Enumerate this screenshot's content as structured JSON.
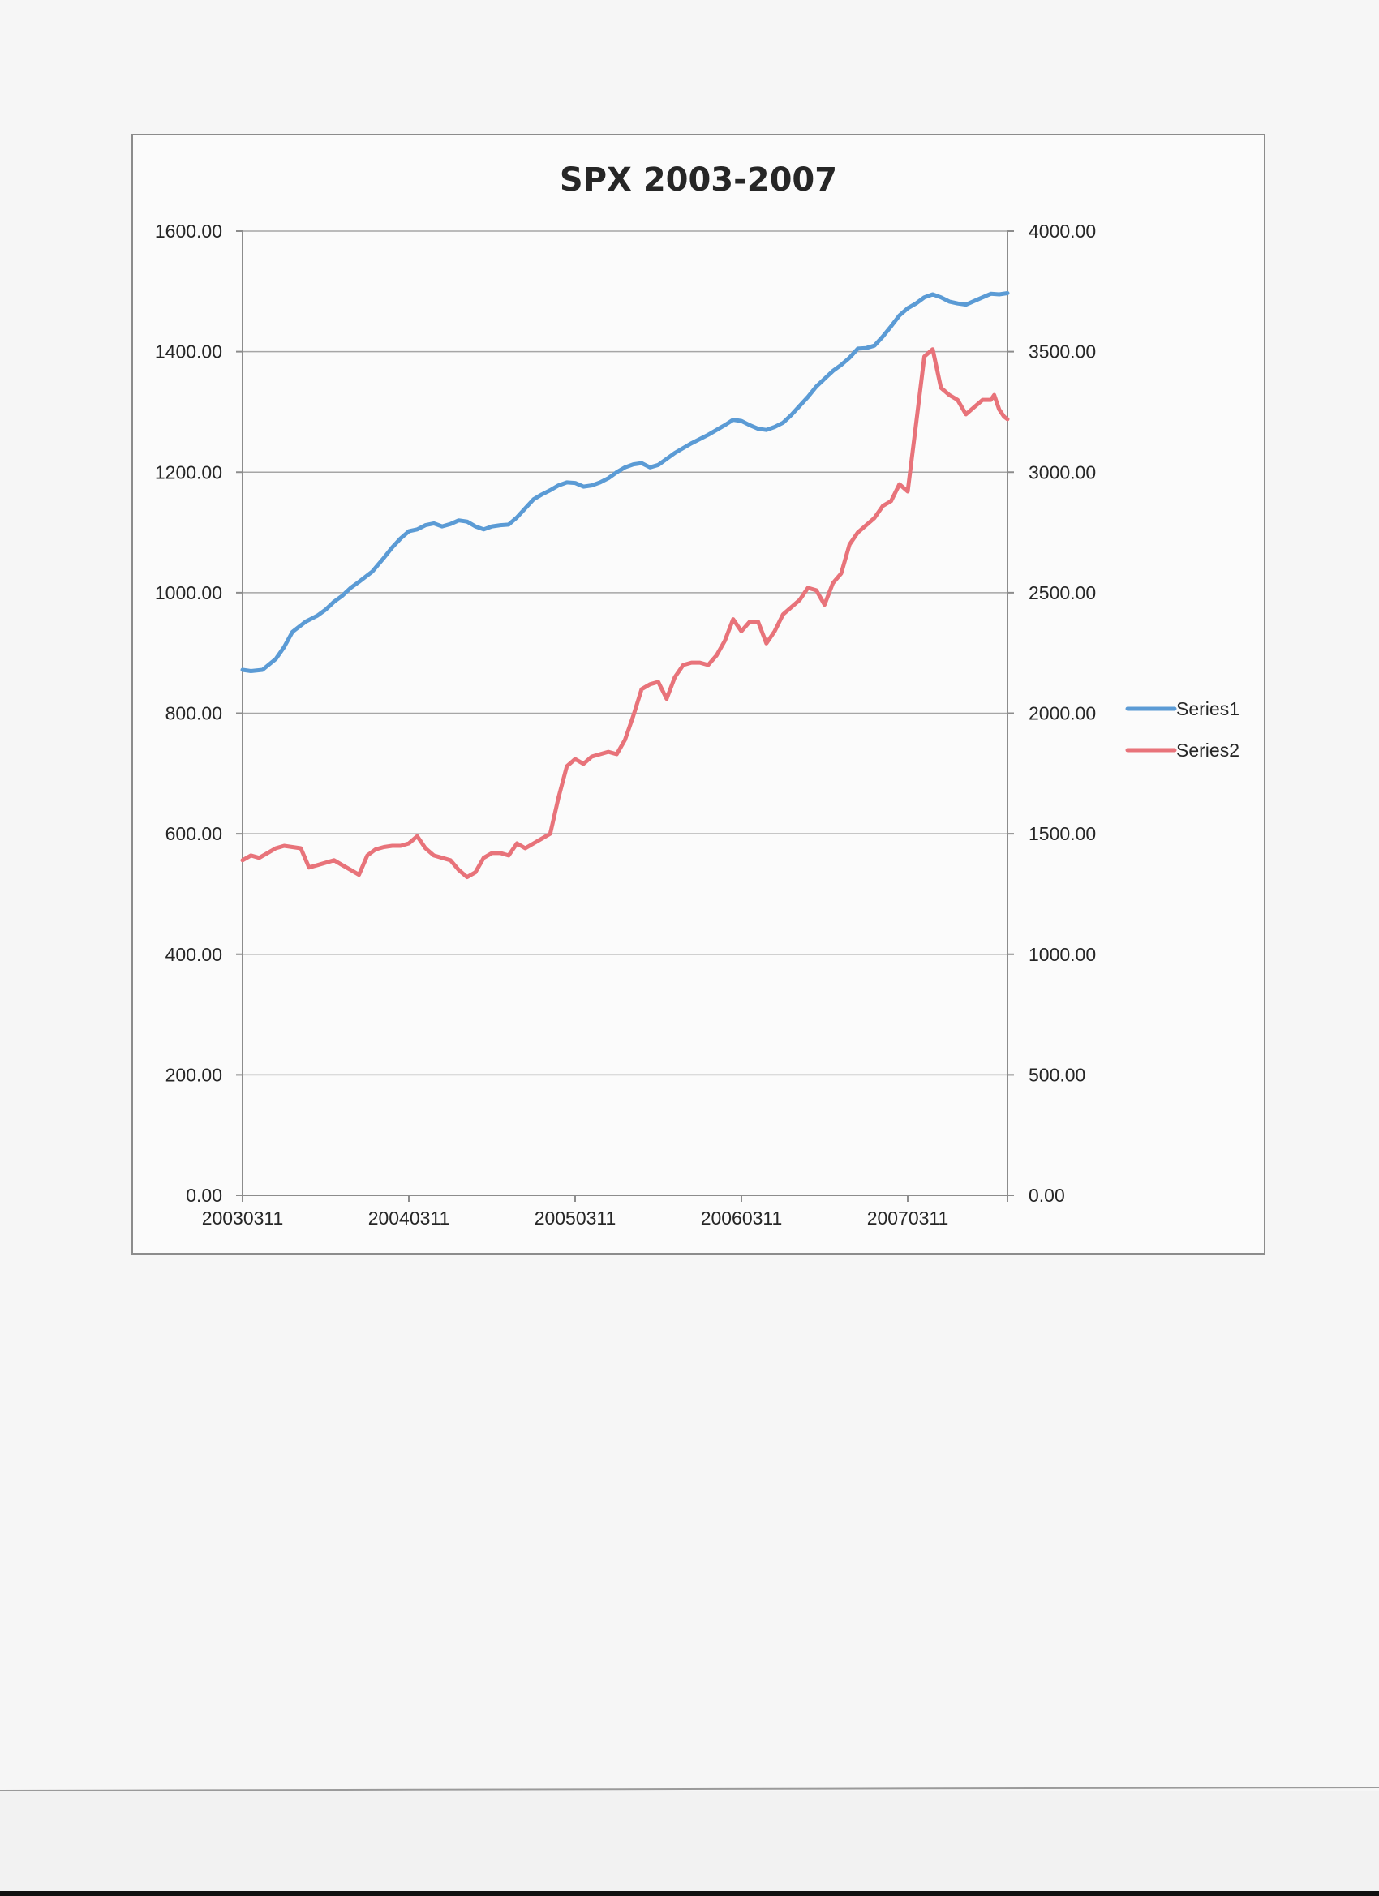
{
  "chart_data": {
    "type": "line",
    "title": "SPX 2003-2007",
    "xlabel": "",
    "ylabel": "",
    "x_tick_labels": [
      "20030311",
      "20040311",
      "20050311",
      "20060311",
      "20070311"
    ],
    "primary_axis": {
      "side": "left",
      "ylim": [
        0,
        1600
      ],
      "tick_labels": [
        "0.00",
        "200.00",
        "400.00",
        "600.00",
        "800.00",
        "1000.00",
        "1200.00",
        "1400.00",
        "1600.00"
      ]
    },
    "secondary_axis": {
      "side": "right",
      "ylim": [
        0,
        4000
      ],
      "tick_labels": [
        "0.00",
        "500.00",
        "1000.00",
        "1500.00",
        "2000.00",
        "2500.00",
        "3000.00",
        "3500.00",
        "4000.00"
      ]
    },
    "grid": true,
    "legend_position": "right",
    "x_range": [
      0,
      4.6
    ],
    "series": [
      {
        "name": "Series1",
        "axis": "primary",
        "color": "#5b9bd5",
        "x": [
          0,
          0.05,
          0.12,
          0.2,
          0.25,
          0.3,
          0.38,
          0.45,
          0.5,
          0.55,
          0.6,
          0.65,
          0.7,
          0.78,
          0.85,
          0.9,
          0.95,
          1.0,
          1.05,
          1.1,
          1.15,
          1.2,
          1.25,
          1.3,
          1.35,
          1.4,
          1.45,
          1.5,
          1.55,
          1.6,
          1.65,
          1.7,
          1.75,
          1.8,
          1.85,
          1.9,
          1.95,
          2.0,
          2.05,
          2.1,
          2.15,
          2.2,
          2.25,
          2.3,
          2.35,
          2.4,
          2.45,
          2.5,
          2.55,
          2.6,
          2.65,
          2.7,
          2.75,
          2.8,
          2.85,
          2.9,
          2.95,
          3.0,
          3.05,
          3.1,
          3.15,
          3.2,
          3.25,
          3.3,
          3.35,
          3.4,
          3.45,
          3.5,
          3.55,
          3.6,
          3.65,
          3.7,
          3.75,
          3.8,
          3.85,
          3.9,
          3.95,
          4.0,
          4.05,
          4.1,
          4.15,
          4.2,
          4.25,
          4.3,
          4.35,
          4.4,
          4.45,
          4.5,
          4.55,
          4.6
        ],
        "values": [
          872,
          870,
          872,
          890,
          910,
          935,
          952,
          962,
          972,
          985,
          995,
          1008,
          1018,
          1035,
          1058,
          1075,
          1090,
          1102,
          1105,
          1112,
          1115,
          1110,
          1114,
          1120,
          1118,
          1110,
          1105,
          1110,
          1112,
          1113,
          1125,
          1140,
          1155,
          1163,
          1170,
          1178,
          1183,
          1182,
          1176,
          1178,
          1183,
          1190,
          1200,
          1208,
          1213,
          1215,
          1208,
          1212,
          1222,
          1232,
          1240,
          1248,
          1255,
          1262,
          1270,
          1278,
          1287,
          1285,
          1278,
          1272,
          1270,
          1275,
          1282,
          1295,
          1310,
          1325,
          1342,
          1355,
          1368,
          1378,
          1390,
          1405,
          1406,
          1410,
          1425,
          1442,
          1460,
          1472,
          1480,
          1490,
          1495,
          1490,
          1483,
          1480,
          1478,
          1484,
          1490,
          1496,
          1495,
          1497
        ]
      },
      {
        "name": "Series2",
        "axis": "secondary",
        "color": "#e8737a",
        "x": [
          0,
          0.05,
          0.1,
          0.15,
          0.2,
          0.25,
          0.3,
          0.35,
          0.4,
          0.45,
          0.5,
          0.55,
          0.6,
          0.65,
          0.7,
          0.75,
          0.8,
          0.85,
          0.9,
          0.95,
          1.0,
          1.05,
          1.1,
          1.15,
          1.2,
          1.25,
          1.3,
          1.35,
          1.4,
          1.45,
          1.5,
          1.55,
          1.6,
          1.65,
          1.7,
          1.75,
          1.8,
          1.85,
          1.9,
          1.95,
          2.0,
          2.05,
          2.1,
          2.15,
          2.2,
          2.25,
          2.3,
          2.35,
          2.4,
          2.45,
          2.5,
          2.55,
          2.6,
          2.65,
          2.7,
          2.75,
          2.8,
          2.85,
          2.9,
          2.95,
          3.0,
          3.05,
          3.1,
          3.15,
          3.2,
          3.25,
          3.3,
          3.35,
          3.4,
          3.45,
          3.5,
          3.55,
          3.6,
          3.65,
          3.7,
          3.75,
          3.8,
          3.85,
          3.9,
          3.95,
          4.0,
          4.05,
          4.1,
          4.15,
          4.2,
          4.25,
          4.3,
          4.35,
          4.4,
          4.45,
          4.5,
          4.52,
          4.55,
          4.58,
          4.6
        ],
        "values": [
          1390,
          1410,
          1400,
          1420,
          1440,
          1450,
          1445,
          1440,
          1360,
          1370,
          1380,
          1390,
          1370,
          1350,
          1330,
          1410,
          1435,
          1445,
          1450,
          1450,
          1460,
          1490,
          1440,
          1410,
          1400,
          1390,
          1350,
          1320,
          1340,
          1400,
          1420,
          1420,
          1410,
          1460,
          1440,
          1460,
          1480,
          1500,
          1650,
          1780,
          1810,
          1790,
          1820,
          1830,
          1840,
          1830,
          1890,
          1990,
          2100,
          2120,
          2130,
          2060,
          2150,
          2200,
          2210,
          2210,
          2200,
          2240,
          2300,
          2390,
          2340,
          2380,
          2380,
          2290,
          2340,
          2410,
          2440,
          2470,
          2520,
          2510,
          2450,
          2540,
          2580,
          2700,
          2750,
          2780,
          2810,
          2860,
          2880,
          2950,
          2920,
          3200,
          3480,
          3510,
          3350,
          3320,
          3300,
          3240,
          3270,
          3300,
          3300,
          3320,
          3260,
          3230,
          3220
        ]
      }
    ]
  }
}
